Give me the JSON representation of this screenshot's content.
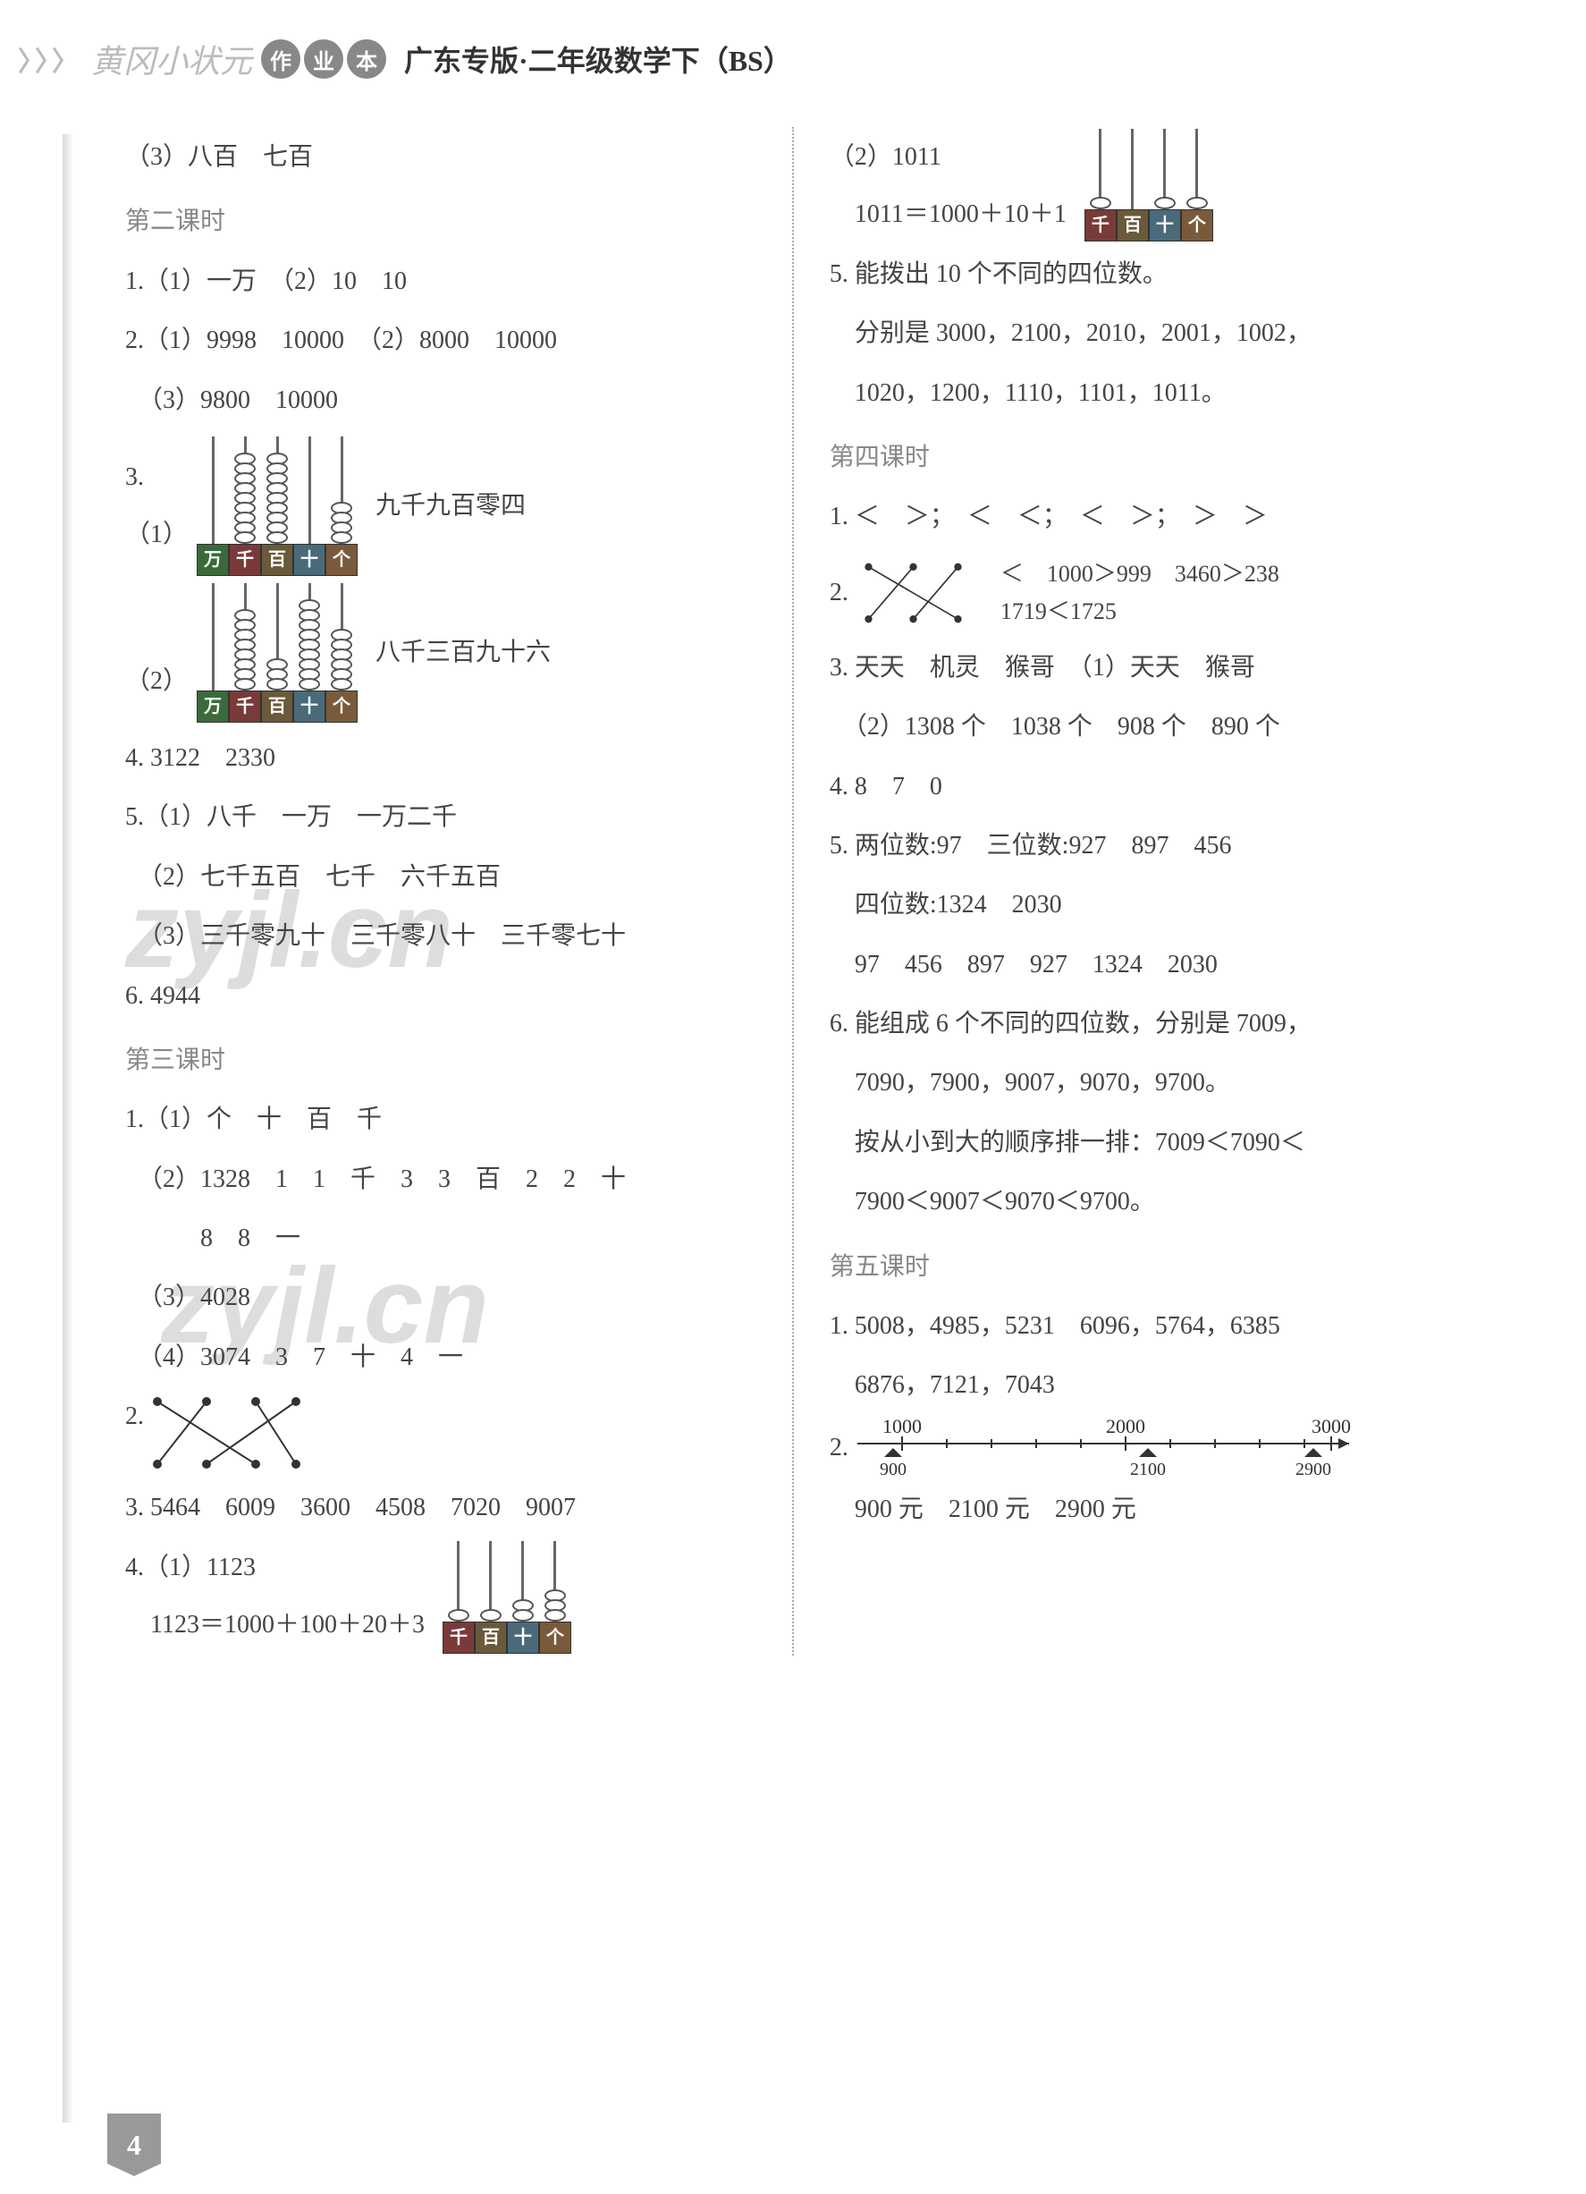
{
  "header": {
    "arrows": "〉〉〉",
    "logo": "黄冈小状元",
    "badges": [
      "作",
      "业",
      "本"
    ],
    "title": "广东专版·二年级数学下（BS）"
  },
  "pageNumber": "4",
  "watermarks": {
    "w1": "zyjl.cn",
    "w2": "zyjl.cn"
  },
  "left": {
    "l0": "（3）八百　七百",
    "sec2": "第二课时",
    "l1": "1.（1）一万　（2）10　10",
    "l2": "2.（1）9998　10000　（2）8000　10000",
    "l3": "　（3）9800　10000",
    "l4_prefix": "3.（1）",
    "l4_text": "九千九百零四",
    "l5_prefix": "　（2）",
    "l5_text": "八千三百九十六",
    "l6": "4. 3122　2330",
    "l7": "5.（1）八千　一万　一万二千",
    "l8": "　（2）七千五百　七千　六千五百",
    "l9": "　（3）三千零九十　三千零八十　三千零七十",
    "l10": "6. 4944",
    "sec3": "第三课时",
    "l11": "1.（1）个　十　百　千",
    "l12": "　（2）1328　1　1　千　3　3　百　2　2　十",
    "l12b": "　　　8　8　一",
    "l13": "　（3）4028",
    "l14": "　（4）3074　3　7　十　4　一",
    "l15": "2.",
    "l16": "3. 5464　6009　3600　4508　7020　9007",
    "l17": "4.（1）1123",
    "l18": "　1123＝1000＋100＋20＋3"
  },
  "right": {
    "r1": "（2）1011",
    "r2": "　1011＝1000＋10＋1",
    "r3": "5. 能拨出 10 个不同的四位数。",
    "r4": "　分别是 3000，2100，2010，2001，1002，",
    "r5": "　1020，1200，1110，1101，1011。",
    "sec4": "第四课时",
    "r6": "1. ＜　＞；　＜　＜；　＜　＞；　＞　＞",
    "r7": "2.",
    "r7a": "＜　1000＞999　3460＞238",
    "r7b": "1719＜1725",
    "r8": "3. 天天　机灵　猴哥　（1）天天　猴哥",
    "r9": "　（2）1308 个　1038 个　908 个　890 个",
    "r10": "4. 8　7　0",
    "r11": "5. 两位数:97　三位数:927　897　456",
    "r12": "　四位数:1324　2030",
    "r13": "　97　456　897　927　1324　2030",
    "r14": "6. 能组成 6 个不同的四位数，分别是 7009，",
    "r15": "　7090，7900，9007，9070，9700。",
    "r16": "　按从小到大的顺序排一排：7009＜7090＜",
    "r17": "　7900＜9007＜9070＜9700。",
    "sec5": "第五课时",
    "r18": "1. 5008，4985，5231　6096，5764，6385",
    "r19": "　6876，7121，7043",
    "r20": "2.",
    "r21": "　900 元　2100 元　2900 元"
  },
  "abacus": {
    "labels5": [
      "万",
      "千",
      "百",
      "十",
      "个"
    ],
    "labels4": [
      "千",
      "百",
      "十",
      "个"
    ],
    "colors5": [
      "#3a6a3a",
      "#7a3a3a",
      "#6a5a3a",
      "#4a6a7a",
      "#7a5a3a"
    ],
    "colors4": [
      "#7a3a3a",
      "#6a5a3a",
      "#4a6a7a",
      "#7a5a3a"
    ],
    "a1_beads": [
      0,
      9,
      9,
      0,
      4
    ],
    "a2_beads": [
      0,
      8,
      3,
      9,
      6
    ],
    "a3_beads": [
      1,
      1,
      2,
      3
    ],
    "a4_beads": [
      1,
      0,
      1,
      1
    ]
  },
  "numberline": {
    "ticks": [
      "1000",
      "2000",
      "3000"
    ],
    "labels": [
      "900",
      "2100",
      "2900"
    ]
  }
}
